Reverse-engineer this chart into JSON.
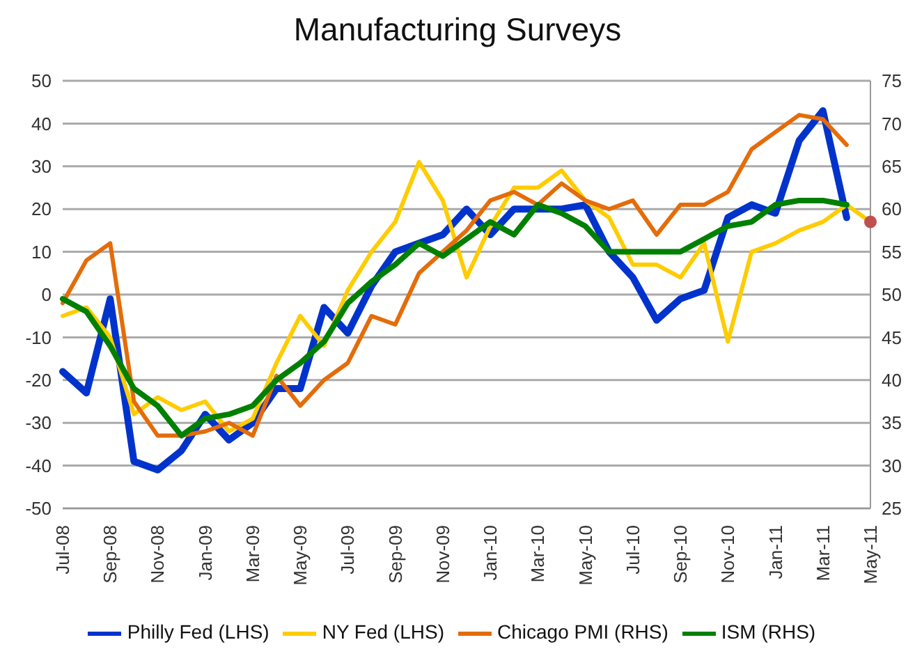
{
  "chart_data": {
    "type": "line",
    "title": "Manufacturing Surveys",
    "categories": [
      "Jul-08",
      null,
      "Sep-08",
      null,
      "Nov-08",
      null,
      "Jan-09",
      null,
      "Mar-09",
      null,
      "May-09",
      null,
      "Jul-09",
      null,
      "Sep-09",
      null,
      "Nov-09",
      null,
      "Jan-10",
      null,
      "Mar-10",
      null,
      "May-10",
      null,
      "Jul-10",
      null,
      "Sep-10",
      null,
      "Nov-10",
      null,
      "Jan-11",
      null,
      "Mar-11",
      null,
      "May-11"
    ],
    "series": [
      {
        "name": "Philly Fed (LHS)",
        "color": "#0033cc",
        "axis": "y",
        "values": [
          -18,
          -23,
          -1,
          -39,
          -41,
          -36.5,
          -28,
          -34,
          -30,
          -22,
          -22,
          -3,
          -9,
          2,
          10,
          12,
          14,
          20,
          14,
          20,
          20,
          20,
          21,
          10,
          4,
          -6,
          -1,
          1,
          18,
          21,
          19,
          36,
          43,
          18,
          null
        ]
      },
      {
        "name": "NY Fed (LHS)",
        "color": "#ffcc00",
        "axis": "y",
        "values": [
          -5,
          -3,
          -10,
          -28,
          -24,
          -27,
          -25,
          -32,
          -29,
          -16,
          -5,
          -12,
          1,
          10,
          17,
          31,
          22,
          4,
          16,
          25,
          25,
          29,
          22,
          18,
          7,
          7,
          4,
          12,
          -11,
          10,
          12,
          15,
          17,
          21,
          17
        ]
      },
      {
        "name": "Chicago PMI (RHS)",
        "color": "#e46c0a",
        "axis": "y2",
        "values": [
          49,
          54,
          56,
          37.5,
          33.5,
          33.5,
          34,
          35,
          33.5,
          40.5,
          37,
          40,
          42,
          47.5,
          46.5,
          52.5,
          55,
          57.5,
          61,
          62,
          60.5,
          63,
          61,
          60,
          61,
          57,
          60.5,
          60.5,
          62,
          67,
          69,
          71,
          70.5,
          67.5,
          null
        ]
      },
      {
        "name": "ISM (RHS)",
        "color": "#008000",
        "axis": "y2",
        "values": [
          49.5,
          48,
          44,
          39,
          37,
          33.5,
          35.5,
          36,
          37,
          40,
          42,
          44.5,
          49,
          51.5,
          53.5,
          56,
          54.5,
          56.5,
          58.5,
          57,
          60.5,
          59.5,
          58,
          55,
          55,
          55,
          55,
          56.5,
          58,
          58.5,
          60.5,
          61,
          61,
          60.5,
          null
        ]
      },
      {
        "type": "scatter",
        "color": "#c0504d",
        "axis": "y",
        "marker": "circle",
        "values": [
          null,
          null,
          null,
          null,
          null,
          null,
          null,
          null,
          null,
          null,
          null,
          null,
          null,
          null,
          null,
          null,
          null,
          null,
          null,
          null,
          null,
          null,
          null,
          null,
          null,
          null,
          null,
          null,
          null,
          null,
          null,
          null,
          null,
          null,
          17
        ]
      }
    ],
    "ylim": [
      -50,
      50
    ],
    "yticks": [
      -50,
      -40,
      -30,
      -20,
      -10,
      0,
      10,
      20,
      30,
      40,
      50
    ],
    "y2lim": [
      25,
      75
    ],
    "y2ticks": [
      25,
      30,
      35,
      40,
      45,
      50,
      55,
      60,
      65,
      70,
      75
    ],
    "grid": "y",
    "legend": "bottom",
    "marker": "none",
    "line_style": "solid"
  }
}
